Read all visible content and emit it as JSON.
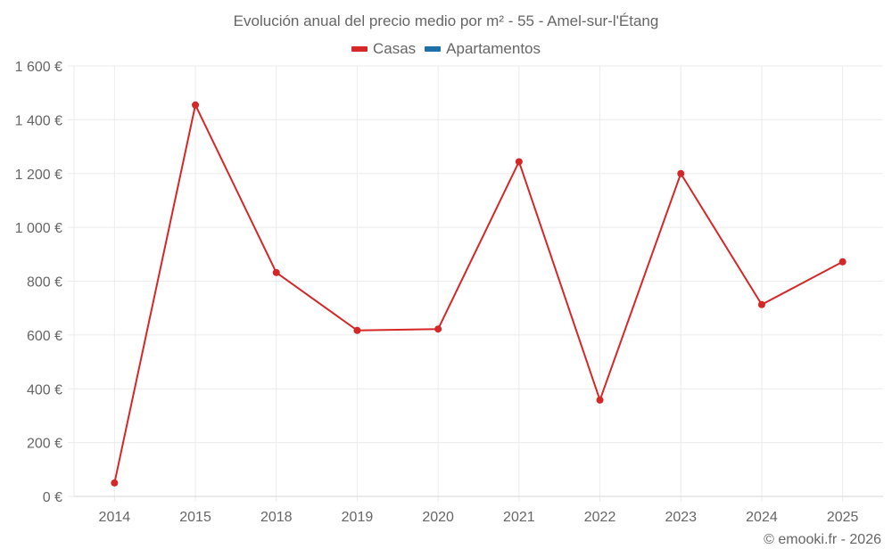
{
  "header": {
    "title": "Evolución anual del precio medio por m² - 55 - Amel-sur-l'Étang"
  },
  "legend": [
    {
      "label": "Casas",
      "color": "#d62728"
    },
    {
      "label": "Apartamentos",
      "color": "#1f6fa8"
    }
  ],
  "footer": {
    "credit": "© emooki.fr - 2026"
  },
  "colors": {
    "line": "#d62728",
    "grid": "#ebebeb",
    "axis": "#d6d6d6",
    "text": "#666666"
  },
  "chart_data": {
    "type": "line",
    "title": "Evolución anual del precio medio por m² - 55 - Amel-sur-l'Étang",
    "xlabel": "",
    "ylabel": "",
    "categories": [
      "2014",
      "2015",
      "2018",
      "2019",
      "2020",
      "2021",
      "2022",
      "2023",
      "2024",
      "2025"
    ],
    "series": [
      {
        "name": "Casas",
        "color": "#d62728",
        "values": [
          50,
          1455,
          832,
          617,
          622,
          1244,
          358,
          1200,
          713,
          872
        ]
      },
      {
        "name": "Apartamentos",
        "color": "#1f6fa8",
        "values": []
      }
    ],
    "ylim": [
      0,
      1600
    ],
    "yticks": [
      0,
      200,
      400,
      600,
      800,
      1000,
      1200,
      1400,
      1600
    ],
    "ytick_labels": [
      "0 €",
      "200 €",
      "400 €",
      "600 €",
      "800 €",
      "1 000 €",
      "1 200 €",
      "1 400 €",
      "1 600 €"
    ],
    "grid": true,
    "legend_position": "top"
  }
}
